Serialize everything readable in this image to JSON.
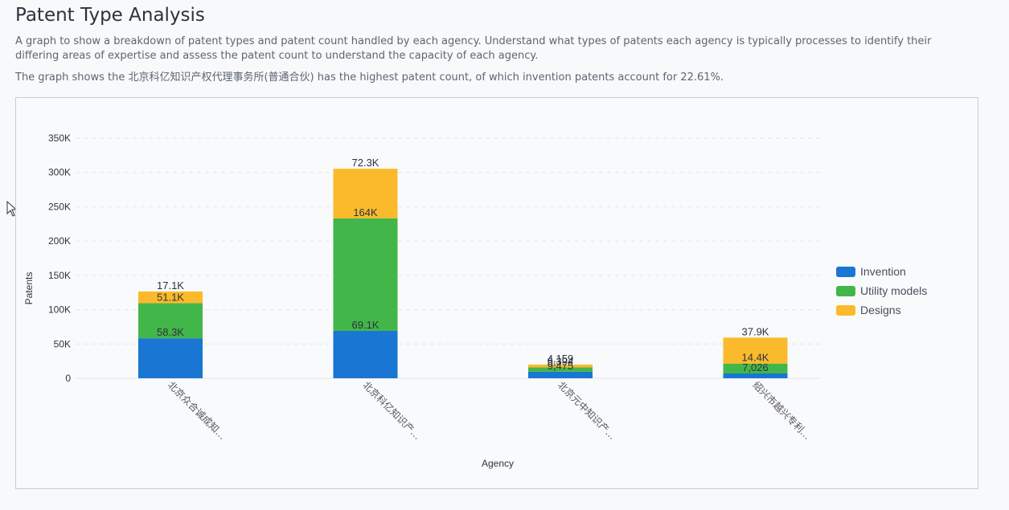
{
  "page": {
    "title": "Patent Type Analysis",
    "description": "A graph to show a breakdown of patent types and patent count handled by each agency. Understand what types of patents each agency is typically processes to identify their differing areas of expertise and assess the patent count to understand the capacity of each agency.",
    "summary": "The graph shows the 北京科亿知识产权代理事务所(普通合伙) has the highest patent count, of which invention patents account for 22.61%."
  },
  "chart_data": {
    "type": "bar",
    "stacked": true,
    "xlabel": "Agency",
    "ylabel": "Patents",
    "ylim": [
      0,
      350000
    ],
    "y_ticks": [
      0,
      50000,
      100000,
      150000,
      200000,
      250000,
      300000,
      350000
    ],
    "y_tick_labels": [
      "0",
      "50K",
      "100K",
      "150K",
      "200K",
      "250K",
      "300K",
      "350K"
    ],
    "categories": [
      "北京众合诚成知…",
      "北京科亿知识产…",
      "北京元中知识产…",
      "绍兴市越兴专利…"
    ],
    "series": [
      {
        "name": "Invention",
        "color": "#1976d2",
        "values": [
          58300,
          69100,
          9475,
          7026
        ],
        "labels": [
          "58.3K",
          "69.1K",
          "9,475",
          "7,026"
        ]
      },
      {
        "name": "Utility models",
        "color": "#43b649",
        "values": [
          51100,
          164000,
          6394,
          14400
        ],
        "labels": [
          "51.1K",
          "164K",
          "6,394",
          "14.4K"
        ]
      },
      {
        "name": "Designs",
        "color": "#fbba2b",
        "values": [
          17100,
          72300,
          4159,
          37900
        ],
        "labels": [
          "17.1K",
          "72.3K",
          "4,159",
          "37.9K"
        ]
      }
    ],
    "legend_position": "right",
    "grid": true
  }
}
